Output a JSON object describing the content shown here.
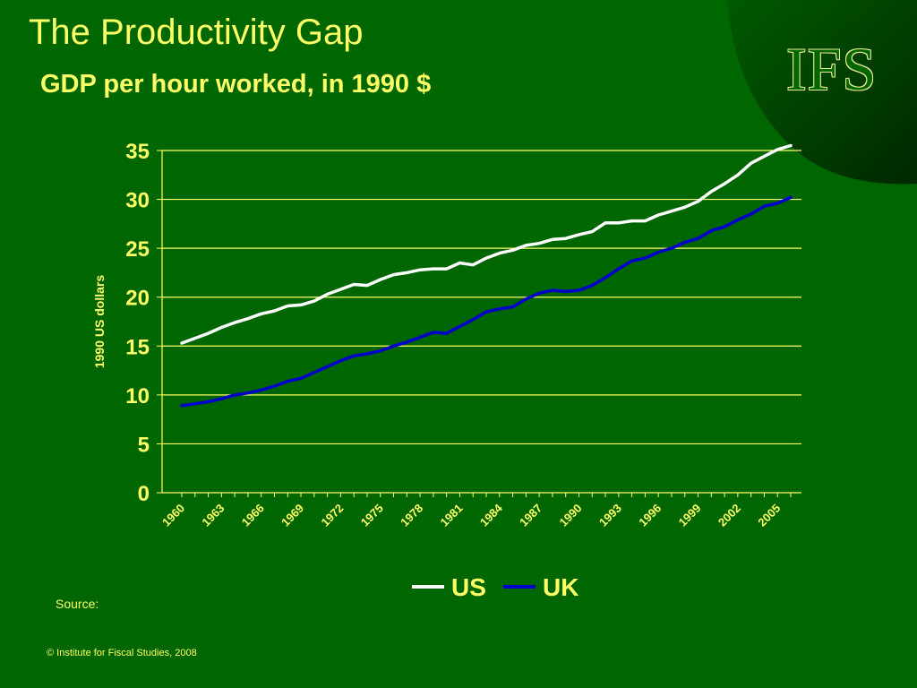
{
  "slide": {
    "title": "The Productivity Gap",
    "subtitle": "GDP per hour worked, in 1990 $",
    "logo_text": "IFS",
    "source_label": "Source:",
    "copyright": "© Institute for Fiscal Studies, 2008"
  },
  "colors": {
    "background": "#006600",
    "text": "#ffff66",
    "grid": "#ffff66",
    "us": "#ffffff",
    "uk": "#0000cc",
    "corner_dark": "#003300"
  },
  "chart_data": {
    "type": "line",
    "ylabel": "1990 US dollars",
    "ylim": [
      0,
      35
    ],
    "y_ticks": [
      "0",
      "5",
      "10",
      "15",
      "20",
      "25",
      "30",
      "35"
    ],
    "x_tick_labels": [
      "1960",
      "1963",
      "1966",
      "1969",
      "1972",
      "1975",
      "1978",
      "1981",
      "1984",
      "1987",
      "1990",
      "1993",
      "1996",
      "1999",
      "2002",
      "2005"
    ],
    "grid": true,
    "legend_position": "bottom",
    "x": [
      1960,
      1961,
      1962,
      1963,
      1964,
      1965,
      1966,
      1967,
      1968,
      1969,
      1970,
      1971,
      1972,
      1973,
      1974,
      1975,
      1976,
      1977,
      1978,
      1979,
      1980,
      1981,
      1982,
      1983,
      1984,
      1985,
      1986,
      1987,
      1988,
      1989,
      1990,
      1991,
      1992,
      1993,
      1994,
      1995,
      1996,
      1997,
      1998,
      1999,
      2000,
      2001,
      2002,
      2003,
      2004,
      2005,
      2006
    ],
    "series": [
      {
        "name": "US",
        "color": "#ffffff",
        "values": [
          15.3,
          15.8,
          16.3,
          16.9,
          17.4,
          17.8,
          18.3,
          18.6,
          19.1,
          19.2,
          19.6,
          20.3,
          20.8,
          21.3,
          21.2,
          21.8,
          22.3,
          22.5,
          22.8,
          22.9,
          22.9,
          23.5,
          23.3,
          24.0,
          24.5,
          24.8,
          25.3,
          25.5,
          25.9,
          26.0,
          26.4,
          26.7,
          27.6,
          27.6,
          27.8,
          27.8,
          28.4,
          28.8,
          29.2,
          29.8,
          30.8,
          31.6,
          32.5,
          33.7,
          34.4,
          35.1,
          35.5
        ]
      },
      {
        "name": "UK",
        "color": "#0000cc",
        "values": [
          8.9,
          9.1,
          9.3,
          9.6,
          10.0,
          10.2,
          10.5,
          10.9,
          11.4,
          11.7,
          12.3,
          12.9,
          13.5,
          14.0,
          14.2,
          14.5,
          15.0,
          15.4,
          15.9,
          16.4,
          16.3,
          17.0,
          17.7,
          18.5,
          18.8,
          19.0,
          19.8,
          20.4,
          20.7,
          20.6,
          20.7,
          21.2,
          22.0,
          22.9,
          23.7,
          24.0,
          24.6,
          25.0,
          25.6,
          26.0,
          26.8,
          27.2,
          27.9,
          28.5,
          29.3,
          29.6,
          30.2
        ]
      }
    ]
  }
}
